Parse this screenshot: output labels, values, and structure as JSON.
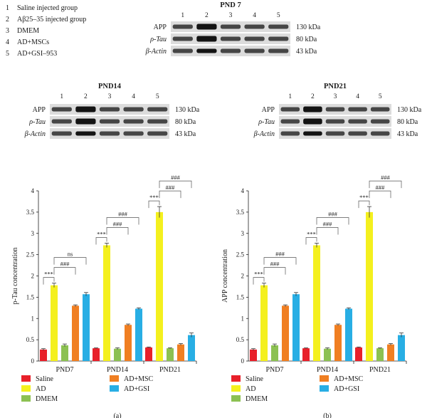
{
  "legend_groups": [
    {
      "num": "1",
      "label": "Saline injected group"
    },
    {
      "num": "2",
      "label": "Aβ25–35 injected group"
    },
    {
      "num": "3",
      "label": "DMEM"
    },
    {
      "num": "4",
      "label": "AD+MSCs"
    },
    {
      "num": "5",
      "label": "AD+GSI–953"
    }
  ],
  "blots": [
    {
      "title": "PND 7",
      "lanes": [
        "1",
        "2",
        "3",
        "4",
        "5"
      ],
      "rows": [
        "APP",
        "ρ-Tau",
        "β-Actin"
      ],
      "weights": [
        "130 kDa",
        "80 kDa",
        "43 kDa"
      ]
    },
    {
      "title": "PND14",
      "lanes": [
        "1",
        "2",
        "3",
        "4",
        "5"
      ],
      "rows": [
        "APP",
        "ρ-Tau",
        "β-Actin"
      ],
      "weights": [
        "130 kDa",
        "80 kDa",
        "43 kDa"
      ]
    },
    {
      "title": "PND21",
      "lanes": [
        "1",
        "2",
        "3",
        "4",
        "5"
      ],
      "rows": [
        "APP",
        "ρ-Tau",
        "β-Actin"
      ],
      "weights": [
        "130 kDa",
        "80 kDa",
        "43 kDa"
      ]
    }
  ],
  "colors": {
    "Saline": "#e8202a",
    "AD": "#f4f01e",
    "DMEM": "#8cc152",
    "AD+MSC": "#f07f22",
    "AD+GSI": "#28aee4"
  },
  "chart_data": [
    {
      "type": "bar",
      "panel": "(a)",
      "ylabel": "p-Tau concentration",
      "categories": [
        "PND7",
        "PND14",
        "PND21"
      ],
      "yticks": [
        "0",
        "0.5",
        "1",
        "1.5",
        "2",
        "2.5",
        "3",
        "3.5",
        "4"
      ],
      "ylim": [
        0,
        4
      ],
      "series": [
        {
          "name": "Saline",
          "values": [
            0.27,
            0.3,
            0.32
          ],
          "err": [
            0.02,
            0.01,
            0.01
          ]
        },
        {
          "name": "AD",
          "values": [
            1.78,
            2.72,
            3.5
          ],
          "err": [
            0.05,
            0.05,
            0.13
          ]
        },
        {
          "name": "DMEM",
          "values": [
            0.37,
            0.29,
            0.3
          ],
          "err": [
            0.03,
            0.02,
            0.01
          ]
        },
        {
          "name": "AD+MSC",
          "values": [
            1.3,
            0.85,
            0.39
          ],
          "err": [
            0.02,
            0.02,
            0.02
          ]
        },
        {
          "name": "AD+GSI",
          "values": [
            1.57,
            1.23,
            0.61
          ],
          "err": [
            0.04,
            0.02,
            0.05
          ]
        }
      ],
      "annotations": [
        {
          "group": 0,
          "from": 0,
          "to": 1,
          "label": "***"
        },
        {
          "group": 0,
          "from": 1,
          "to": 3,
          "label": "###"
        },
        {
          "group": 0,
          "from": 1,
          "to": 4,
          "label": "ns"
        },
        {
          "group": 1,
          "from": 0,
          "to": 1,
          "label": "***"
        },
        {
          "group": 1,
          "from": 1,
          "to": 3,
          "label": "###"
        },
        {
          "group": 1,
          "from": 1,
          "to": 4,
          "label": "###"
        },
        {
          "group": 2,
          "from": 0,
          "to": 1,
          "label": "***"
        },
        {
          "group": 2,
          "from": 1,
          "to": 3,
          "label": "###"
        },
        {
          "group": 2,
          "from": 1,
          "to": 4,
          "label": "###"
        }
      ]
    },
    {
      "type": "bar",
      "panel": "(b)",
      "ylabel": "APP concentration",
      "categories": [
        "PND7",
        "PND14",
        "PND21"
      ],
      "yticks": [
        "0",
        "0.5",
        "1",
        "1.5",
        "2",
        "2.5",
        "3",
        "3.5",
        "4"
      ],
      "ylim": [
        0,
        4
      ],
      "series": [
        {
          "name": "Saline",
          "values": [
            0.27,
            0.3,
            0.32
          ],
          "err": [
            0.02,
            0.01,
            0.01
          ]
        },
        {
          "name": "AD",
          "values": [
            1.78,
            2.72,
            3.5
          ],
          "err": [
            0.05,
            0.05,
            0.13
          ]
        },
        {
          "name": "DMEM",
          "values": [
            0.37,
            0.29,
            0.3
          ],
          "err": [
            0.03,
            0.02,
            0.01
          ]
        },
        {
          "name": "AD+MSC",
          "values": [
            1.3,
            0.85,
            0.39
          ],
          "err": [
            0.02,
            0.02,
            0.02
          ]
        },
        {
          "name": "AD+GSI",
          "values": [
            1.57,
            1.23,
            0.61
          ],
          "err": [
            0.04,
            0.02,
            0.05
          ]
        }
      ],
      "annotations": [
        {
          "group": 0,
          "from": 0,
          "to": 1,
          "label": "***"
        },
        {
          "group": 0,
          "from": 1,
          "to": 3,
          "label": "###"
        },
        {
          "group": 0,
          "from": 1,
          "to": 4,
          "label": "###"
        },
        {
          "group": 1,
          "from": 0,
          "to": 1,
          "label": "***"
        },
        {
          "group": 1,
          "from": 1,
          "to": 3,
          "label": "###"
        },
        {
          "group": 1,
          "from": 1,
          "to": 4,
          "label": "###"
        },
        {
          "group": 2,
          "from": 0,
          "to": 1,
          "label": "***"
        },
        {
          "group": 2,
          "from": 1,
          "to": 3,
          "label": "###"
        },
        {
          "group": 2,
          "from": 1,
          "to": 4,
          "label": "###"
        }
      ]
    }
  ]
}
